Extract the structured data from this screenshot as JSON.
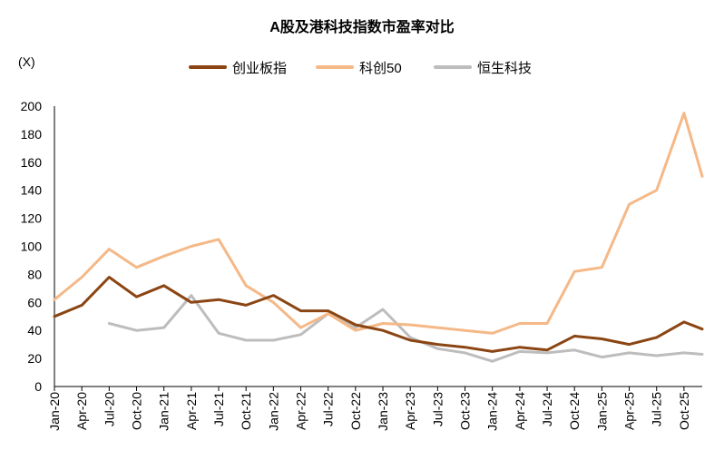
{
  "chart_data": {
    "type": "line",
    "title": "A股及港科技指数市盈率对比",
    "ylabel": "(X)",
    "ylim": [
      0,
      200
    ],
    "yticks": [
      0,
      20,
      40,
      60,
      80,
      100,
      120,
      140,
      160,
      180,
      200
    ],
    "grid": false,
    "legend": "top-center",
    "xtick_labels": [
      "Jan-20",
      "Apr-20",
      "Jul-20",
      "Oct-20",
      "Jan-21",
      "Apr-21",
      "Jul-21",
      "Oct-21",
      "Jan-22",
      "Apr-22",
      "Jul-22",
      "Oct-22",
      "Jan-23",
      "Apr-23",
      "Jul-23",
      "Oct-23",
      "Jan-24",
      "Apr-24",
      "Jul-24",
      "Oct-24",
      "Jan-25",
      "Apr-25",
      "Jul-25",
      "Oct-25"
    ],
    "x_dates": [
      "2020-01",
      "2020-04",
      "2020-07",
      "2020-10",
      "2021-01",
      "2021-04",
      "2021-07",
      "2021-10",
      "2022-01",
      "2022-04",
      "2022-07",
      "2022-10",
      "2023-01",
      "2023-04",
      "2023-07",
      "2023-10",
      "2024-01",
      "2024-04",
      "2024-07",
      "2024-10",
      "2025-01",
      "2025-04",
      "2025-07",
      "2025-10",
      "2025-12"
    ],
    "series": [
      {
        "name": "创业板指",
        "color": "#8B4513",
        "values": [
          50,
          58,
          78,
          64,
          72,
          60,
          62,
          58,
          65,
          54,
          54,
          44,
          40,
          33,
          30,
          28,
          25,
          28,
          26,
          36,
          34,
          30,
          35,
          46,
          41
        ]
      },
      {
        "name": "科创50",
        "color": "#F5B887",
        "values": [
          62,
          78,
          98,
          85,
          93,
          100,
          105,
          72,
          60,
          42,
          52,
          40,
          45,
          44,
          42,
          40,
          38,
          45,
          45,
          82,
          85,
          130,
          140,
          195,
          150
        ]
      },
      {
        "name": "恒生科技",
        "color": "#BDBDBD",
        "values": [
          null,
          null,
          45,
          40,
          42,
          65,
          38,
          33,
          33,
          37,
          52,
          42,
          55,
          35,
          27,
          24,
          18,
          25,
          24,
          26,
          21,
          24,
          22,
          24,
          23
        ]
      }
    ]
  }
}
